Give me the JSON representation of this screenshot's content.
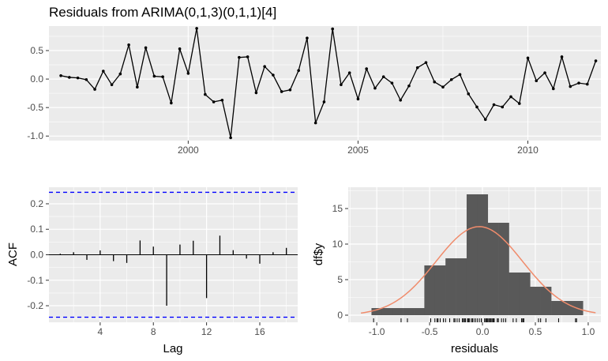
{
  "title": "Residuals from ARIMA(0,1,3)(0,1,1)[4]",
  "colors": {
    "panel": "#EBEBEB",
    "grid_major": "#FFFFFF",
    "line": "#000000",
    "ci_line": "#0000FF",
    "bars": "#595959",
    "density": "#F08B6B",
    "rug": "#000000"
  },
  "chart_data": [
    {
      "type": "line",
      "name": "residual-time-series",
      "title": "Residuals from ARIMA(0,1,3)(0,1,1)[4]",
      "xlabel": "",
      "ylabel": "",
      "x_start": 1996.25,
      "x_step": 0.25,
      "x_ticks": [
        2000,
        2005,
        2010
      ],
      "x_tick_labels": [
        "2000",
        "2005",
        "2010"
      ],
      "y_ticks": [
        -1.0,
        -0.5,
        0.0,
        0.5
      ],
      "y_tick_labels": [
        "-1.0",
        "-0.5",
        "0.0",
        "0.5"
      ],
      "xlim": [
        1995.9,
        2012.15
      ],
      "ylim": [
        -1.08,
        0.93
      ],
      "values": [
        0.06,
        0.03,
        0.02,
        -0.01,
        -0.18,
        0.14,
        -0.1,
        0.09,
        0.6,
        -0.14,
        0.55,
        0.05,
        0.04,
        -0.42,
        0.53,
        0.1,
        0.89,
        -0.27,
        -0.4,
        -0.37,
        -1.03,
        0.38,
        0.39,
        -0.24,
        0.22,
        0.07,
        -0.22,
        -0.19,
        0.15,
        0.72,
        -0.77,
        -0.4,
        0.88,
        -0.1,
        0.11,
        -0.35,
        0.18,
        -0.16,
        0.04,
        -0.07,
        -0.37,
        -0.12,
        0.2,
        0.29,
        -0.05,
        -0.14,
        -0.01,
        0.08,
        -0.26,
        -0.49,
        -0.71,
        -0.45,
        -0.49,
        -0.31,
        -0.43,
        0.37,
        -0.03,
        0.11,
        -0.17,
        0.39,
        -0.13,
        -0.07,
        -0.09,
        0.32
      ]
    },
    {
      "type": "bar",
      "name": "acf",
      "xlabel": "Lag",
      "ylabel": "ACF",
      "x_ticks": [
        4,
        8,
        12,
        16
      ],
      "x_tick_labels": [
        "4",
        "8",
        "12",
        "16"
      ],
      "y_ticks": [
        -0.2,
        -0.1,
        0.0,
        0.1,
        0.2
      ],
      "y_tick_labels": [
        "-0.2",
        "-0.1",
        "0.0",
        "0.1",
        "0.2"
      ],
      "xlim": [
        0.15,
        18.85
      ],
      "ylim": [
        -0.265,
        0.265
      ],
      "lags": [
        1,
        2,
        3,
        4,
        5,
        6,
        7,
        8,
        9,
        10,
        11,
        12,
        13,
        14,
        15,
        16,
        17,
        18
      ],
      "values": [
        0.004,
        0.01,
        -0.02,
        0.017,
        -0.025,
        -0.032,
        0.056,
        0.032,
        -0.2,
        0.04,
        0.055,
        -0.17,
        0.075,
        0.018,
        -0.015,
        -0.035,
        0.01,
        0.027
      ],
      "ci": 0.245
    },
    {
      "type": "bar",
      "name": "residual-histogram",
      "xlabel": "residuals",
      "ylabel": "df$y",
      "x_ticks": [
        -1.0,
        -0.5,
        0.0,
        0.5,
        1.0
      ],
      "x_tick_labels": [
        "-1.0",
        "-0.5",
        "0.0",
        "0.5",
        "1.0"
      ],
      "y_ticks": [
        0,
        5,
        10,
        15
      ],
      "y_tick_labels": [
        "0",
        "5",
        "10",
        "15"
      ],
      "xlim": [
        -1.27,
        1.12
      ],
      "ylim": [
        -1.0,
        18.0
      ],
      "bin_width": 0.1,
      "bin_centers": [
        -1.0,
        -0.9,
        -0.8,
        -0.7,
        -0.6,
        -0.5,
        -0.4,
        -0.3,
        -0.2,
        -0.1,
        0.0,
        0.1,
        0.2,
        0.3,
        0.4,
        0.5,
        0.6,
        0.7,
        0.8,
        0.9
      ],
      "counts": [
        1,
        1,
        1,
        1,
        1,
        7,
        7,
        8,
        8,
        17,
        17,
        13,
        13,
        6,
        6,
        4,
        4,
        2,
        2,
        2
      ],
      "density_curve": {
        "mean": -0.03,
        "sd": 0.41,
        "n": 64,
        "bin_width": 0.2
      },
      "rug": [
        -1.03,
        -0.77,
        -0.71,
        -0.49,
        -0.49,
        -0.45,
        -0.43,
        -0.42,
        -0.4,
        -0.4,
        -0.37,
        -0.37,
        -0.35,
        -0.31,
        -0.27,
        -0.26,
        -0.24,
        -0.22,
        -0.19,
        -0.18,
        -0.17,
        -0.16,
        -0.14,
        -0.14,
        -0.13,
        -0.12,
        -0.1,
        -0.1,
        -0.09,
        -0.07,
        -0.07,
        -0.05,
        -0.03,
        -0.01,
        -0.01,
        0.02,
        0.03,
        0.04,
        0.04,
        0.05,
        0.06,
        0.07,
        0.08,
        0.09,
        0.1,
        0.11,
        0.11,
        0.14,
        0.15,
        0.18,
        0.2,
        0.22,
        0.29,
        0.32,
        0.37,
        0.38,
        0.39,
        0.39,
        0.53,
        0.55,
        0.6,
        0.72,
        0.88,
        0.89
      ]
    }
  ]
}
